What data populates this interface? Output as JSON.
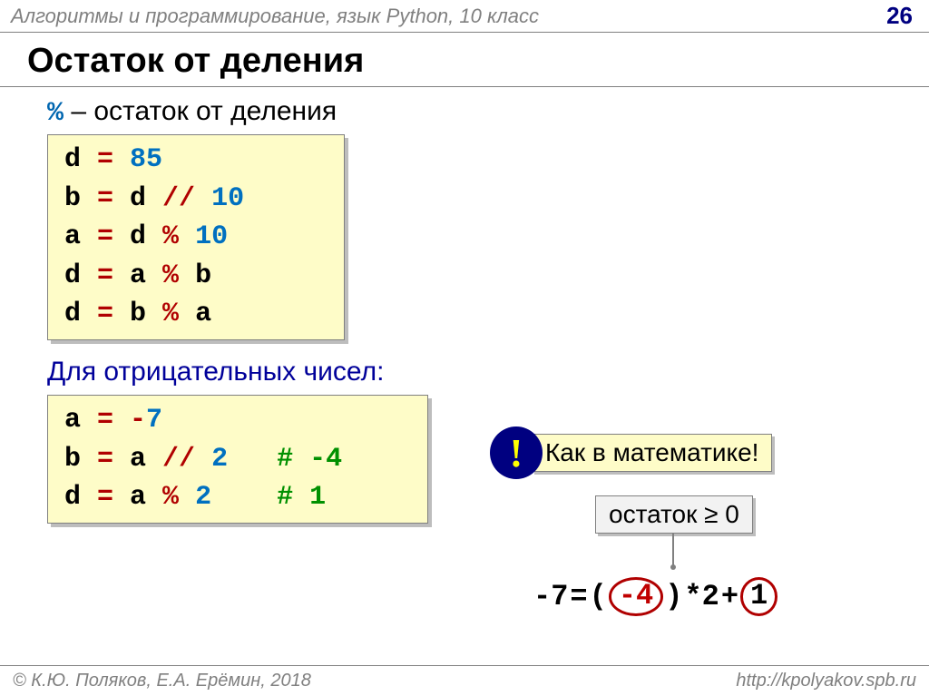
{
  "header": {
    "title": "Алгоритмы и программирование, язык Python, 10 класс",
    "page": "26"
  },
  "title": "Остаток от деления",
  "explain": {
    "symbol": "%",
    "text": " – остаток от деления"
  },
  "code1": {
    "l1": {
      "v": "d",
      "eq": " = ",
      "n": "85"
    },
    "l2": {
      "v": "b",
      "eq": " = ",
      "r": "d ",
      "op": "//",
      "n": " 10"
    },
    "l3": {
      "v": "a",
      "eq": " = ",
      "r": "d ",
      "op": "%",
      "n": " 10"
    },
    "l4": {
      "v": "d",
      "eq": " = ",
      "r": "a ",
      "op": "%",
      "r2": " b"
    },
    "l5": {
      "v": "d",
      "eq": " = ",
      "r": "b ",
      "op": "%",
      "r2": " a"
    }
  },
  "subtitle": "Для отрицательных чисел:",
  "code2": {
    "l1": {
      "v": "a",
      "eq": " = ",
      "op": "-",
      "n": "7"
    },
    "l2": {
      "v": "b",
      "eq": " = ",
      "r": "a ",
      "op": "//",
      "n": " 2",
      "sp": "   ",
      "cm": "# -4"
    },
    "l3": {
      "v": "d",
      "eq": " = ",
      "r": "a ",
      "op": "%",
      "n": " 2",
      "sp": "    ",
      "cm": "# 1"
    }
  },
  "bang": "!",
  "note": "Как в математике!",
  "remainder": "остаток ≥ 0",
  "equation": {
    "lhs": "-7 ",
    "eq": " = ",
    "p1": "(",
    "neg4": "-4",
    "p2": ")",
    "mul": "*2 ",
    "plus": " + ",
    "one": "1"
  },
  "footer": {
    "left": "© К.Ю. Поляков, Е.А. Ерёмин, 2018",
    "right": "http://kpolyakov.spb.ru"
  },
  "colors": {
    "operator": "#b00000",
    "number": "#0070c0",
    "comment": "#009000",
    "codebg": "#fefcc8",
    "title_dark": "#000000",
    "subtitle_blue": "#00009a",
    "header_gray": "#808080",
    "bang_bg": "#000080",
    "bang_fg": "#ffff00"
  }
}
